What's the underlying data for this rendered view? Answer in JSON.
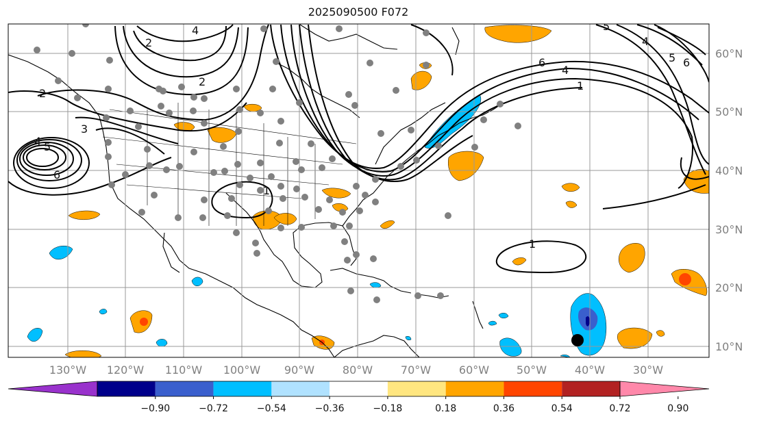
{
  "title": "2025090500 F072",
  "lat_labels": [
    "60°N",
    "50°N",
    "40°N",
    "30°N",
    "20°N",
    "10°N"
  ],
  "lon_labels": [
    "130°W",
    "120°W",
    "110°W",
    "100°W",
    "90°W",
    "80°W",
    "70°W",
    "60°W",
    "50°W",
    "40°W",
    "30°W"
  ],
  "colorbar": {
    "colors": [
      "#9932cc",
      "#00008b",
      "#3a5fcd",
      "#00bfff",
      "#b0e2ff",
      "#ffffff",
      "#ffe680",
      "#ffa500",
      "#ff4500",
      "#b22222",
      "#ff88aa"
    ],
    "ticks": [
      "−0.90",
      "−0.72",
      "−0.54",
      "−0.36",
      "−0.18",
      "0.18",
      "0.36",
      "0.54",
      "0.72",
      "0.90"
    ]
  },
  "contour_labels": [
    "2",
    "4",
    "2",
    "3",
    "4",
    "5",
    "6",
    "2",
    "1",
    "6",
    "4",
    "1",
    "5",
    "4",
    "5",
    "6",
    "1"
  ],
  "colors": {
    "contour": "#000000",
    "grid": "#999999",
    "station": "#808080",
    "marker": "#000000"
  }
}
